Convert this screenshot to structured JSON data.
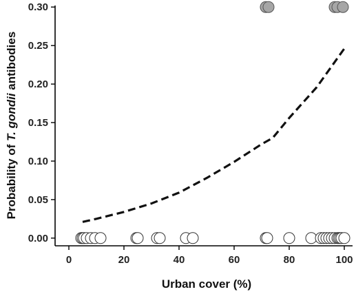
{
  "chart_data": {
    "type": "scatter",
    "xlabel": "Urban cover (%)",
    "ylabel_parts": [
      "Probability of ",
      "T. gondii",
      " antibodies"
    ],
    "xlim": [
      -5,
      103
    ],
    "ylim": [
      -0.01,
      0.302
    ],
    "x_ticks": [
      0,
      20,
      40,
      60,
      80,
      100
    ],
    "x_tick_labels": [
      "0",
      "20",
      "40",
      "60",
      "80",
      "100"
    ],
    "y_ticks": [
      0.0,
      0.05,
      0.1,
      0.15,
      0.2,
      0.25,
      0.3
    ],
    "y_tick_labels": [
      "0.00",
      "0.05",
      "0.10",
      "0.15",
      "0.20",
      "0.25",
      "0.30"
    ],
    "grid": false,
    "series": [
      {
        "kind": "scatter",
        "marker": "open-circle",
        "color": "#ffffff",
        "stroke": "#333333",
        "x": [
          4.5,
          5,
          5.5,
          6.5,
          8,
          9.5,
          11.5,
          24.5,
          25,
          32,
          33,
          42.5,
          45,
          71.5,
          72,
          80,
          88,
          91.5,
          92.5,
          93.5,
          94.5,
          95.5,
          96.5,
          97.5,
          98,
          98.5,
          99,
          100
        ],
        "y": [
          0,
          0,
          0,
          0,
          0,
          0,
          0,
          0,
          0,
          0,
          0,
          0,
          0,
          0,
          0,
          0,
          0,
          0,
          0,
          0,
          0,
          0,
          0,
          0,
          0,
          0,
          0,
          0
        ]
      },
      {
        "kind": "scatter",
        "marker": "filled-circle",
        "color": "#a6a6a6",
        "stroke": "#555555",
        "x": [
          71.5,
          72.5,
          96.5,
          97.5,
          99.5
        ],
        "y": [
          0.3,
          0.3,
          0.3,
          0.3,
          0.3
        ]
      },
      {
        "kind": "line",
        "style": "dashed",
        "color": "#111111",
        "x": [
          5,
          10,
          20,
          30,
          40,
          50,
          60,
          70,
          74,
          80,
          90,
          100
        ],
        "y": [
          0.021,
          0.025,
          0.034,
          0.045,
          0.059,
          0.078,
          0.099,
          0.122,
          0.13,
          0.156,
          0.196,
          0.246
        ]
      }
    ]
  }
}
